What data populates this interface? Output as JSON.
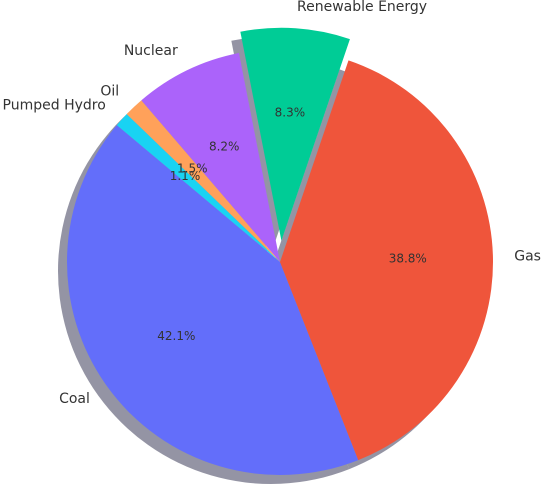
{
  "chart_data": {
    "type": "pie",
    "categories": [
      "Coal",
      "Gas",
      "Renewable Energy",
      "Nuclear",
      "Oil",
      "Pumped Hydro"
    ],
    "values": [
      42.1,
      38.8,
      8.3,
      8.2,
      1.5,
      1.1
    ],
    "value_labels": [
      "42.1%",
      "38.8%",
      "8.3%",
      "8.2%",
      "1.5%",
      "1.1%"
    ],
    "colors": [
      "#636efa",
      "#ef553b",
      "#00cc96",
      "#ab63fa",
      "#ffa15a",
      "#19d3f3"
    ],
    "explode": [
      0,
      0,
      0.1,
      0,
      0,
      0
    ],
    "startangle": 140,
    "shadow": true
  }
}
